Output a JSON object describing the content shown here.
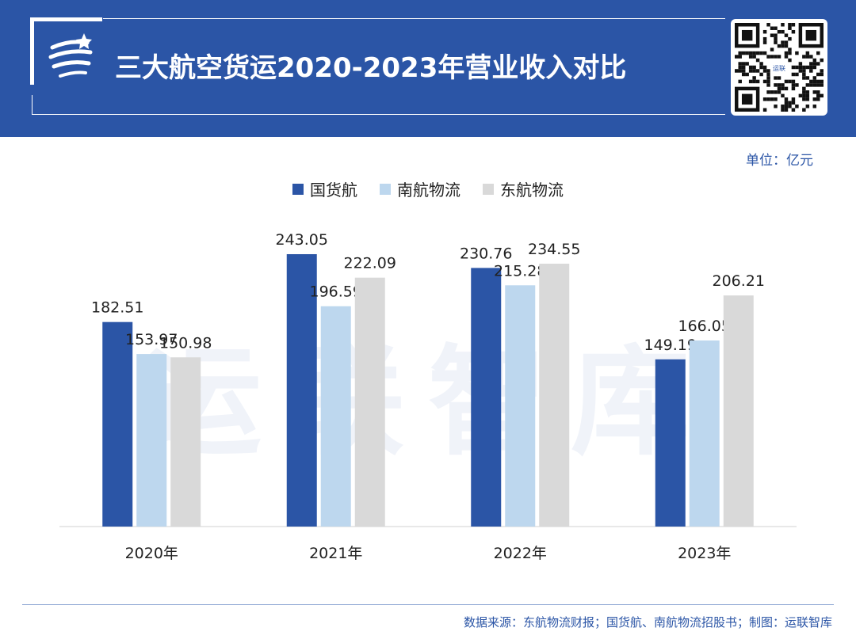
{
  "header": {
    "title": "三大航空货运2020-2023年营业收入对比",
    "qr_label": "运联"
  },
  "unit_label": "单位：亿元",
  "watermark": "运联智库",
  "source": "数据来源：东航物流财报；国货航、南航物流招股书；制图：运联智库",
  "colors": {
    "header_bg": "#2b55a6",
    "accent": "#2b55a6"
  },
  "chart_data": {
    "type": "bar",
    "title": "三大航空货运2020-2023年营业收入对比",
    "ylabel": "",
    "xlabel": "",
    "unit": "亿元",
    "ylim": [
      0,
      260
    ],
    "grid": false,
    "legend_position": "top-center",
    "categories": [
      "2020年",
      "2021年",
      "2022年",
      "2023年"
    ],
    "series": [
      {
        "name": "国货航",
        "color": "#2b55a6",
        "values": [
          182.51,
          243.05,
          230.76,
          149.19
        ]
      },
      {
        "name": "南航物流",
        "color": "#bdd7ee",
        "values": [
          153.97,
          196.59,
          215.28,
          166.05
        ]
      },
      {
        "name": "东航物流",
        "color": "#d9d9d9",
        "values": [
          150.98,
          222.09,
          234.55,
          206.21
        ]
      }
    ]
  }
}
